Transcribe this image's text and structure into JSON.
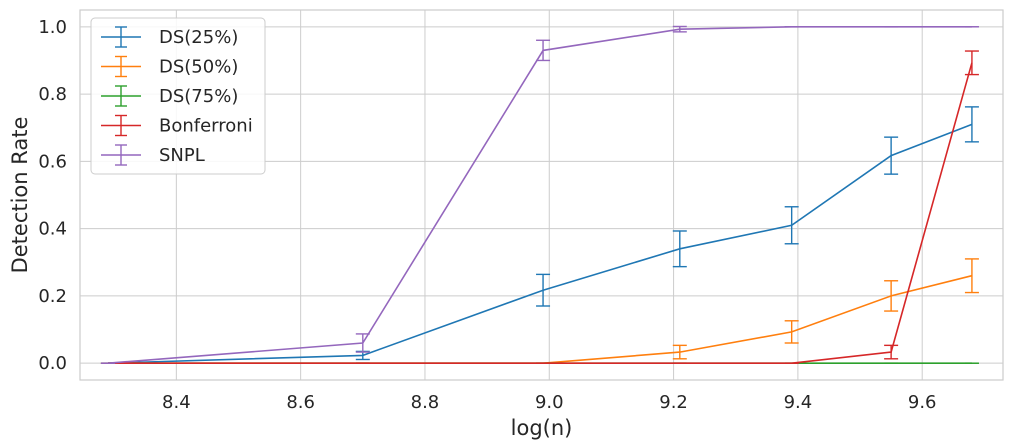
{
  "chart_data": {
    "type": "line",
    "title": "",
    "xlabel": "log(n)",
    "ylabel": "Detection Rate",
    "xlim": [
      8.245,
      9.73
    ],
    "ylim": [
      -0.05,
      1.05
    ],
    "xticks": [
      8.4,
      8.6,
      8.8,
      9.0,
      9.2,
      9.4,
      9.6
    ],
    "xtick_labels": [
      "8.4",
      "8.6",
      "8.8",
      "9.0",
      "9.2",
      "9.4",
      "9.6"
    ],
    "yticks": [
      0.0,
      0.2,
      0.4,
      0.6,
      0.8,
      1.0
    ],
    "ytick_labels": [
      "0.0",
      "0.2",
      "0.4",
      "0.6",
      "0.8",
      "1.0"
    ],
    "grid": true,
    "legend_position": "top-left",
    "x": [
      8.29,
      8.7,
      8.99,
      9.21,
      9.39,
      9.55,
      9.68
    ],
    "series": [
      {
        "name": "DS(25%)",
        "color": "#1f77b4",
        "values": [
          0.0,
          0.023,
          0.217,
          0.34,
          0.41,
          0.617,
          0.71
        ],
        "errors": [
          0.0,
          0.012,
          0.047,
          0.053,
          0.055,
          0.055,
          0.052
        ]
      },
      {
        "name": "DS(50%)",
        "color": "#ff7f0e",
        "values": [
          0.0,
          0.0,
          0.0,
          0.033,
          0.093,
          0.2,
          0.26
        ],
        "errors": [
          0.0,
          0.0,
          0.0,
          0.02,
          0.033,
          0.045,
          0.05
        ]
      },
      {
        "name": "DS(75%)",
        "color": "#2ca02c",
        "values": [
          0.0,
          0.0,
          0.0,
          0.0,
          0.0,
          0.0,
          0.0
        ],
        "errors": [
          0.0,
          0.0,
          0.0,
          0.0,
          0.0,
          0.0,
          0.0
        ]
      },
      {
        "name": "Bonferroni",
        "color": "#d62728",
        "values": [
          0.0,
          0.0,
          0.0,
          0.0,
          0.0,
          0.033,
          0.893
        ],
        "errors": [
          0.0,
          0.0,
          0.0,
          0.0,
          0.0,
          0.02,
          0.035
        ]
      },
      {
        "name": "SNPL",
        "color": "#9467bd",
        "values": [
          0.0,
          0.06,
          0.93,
          0.993,
          1.0,
          1.0,
          1.0
        ],
        "errors": [
          0.0,
          0.027,
          0.03,
          0.008,
          0.0,
          0.0,
          0.0
        ]
      }
    ]
  }
}
